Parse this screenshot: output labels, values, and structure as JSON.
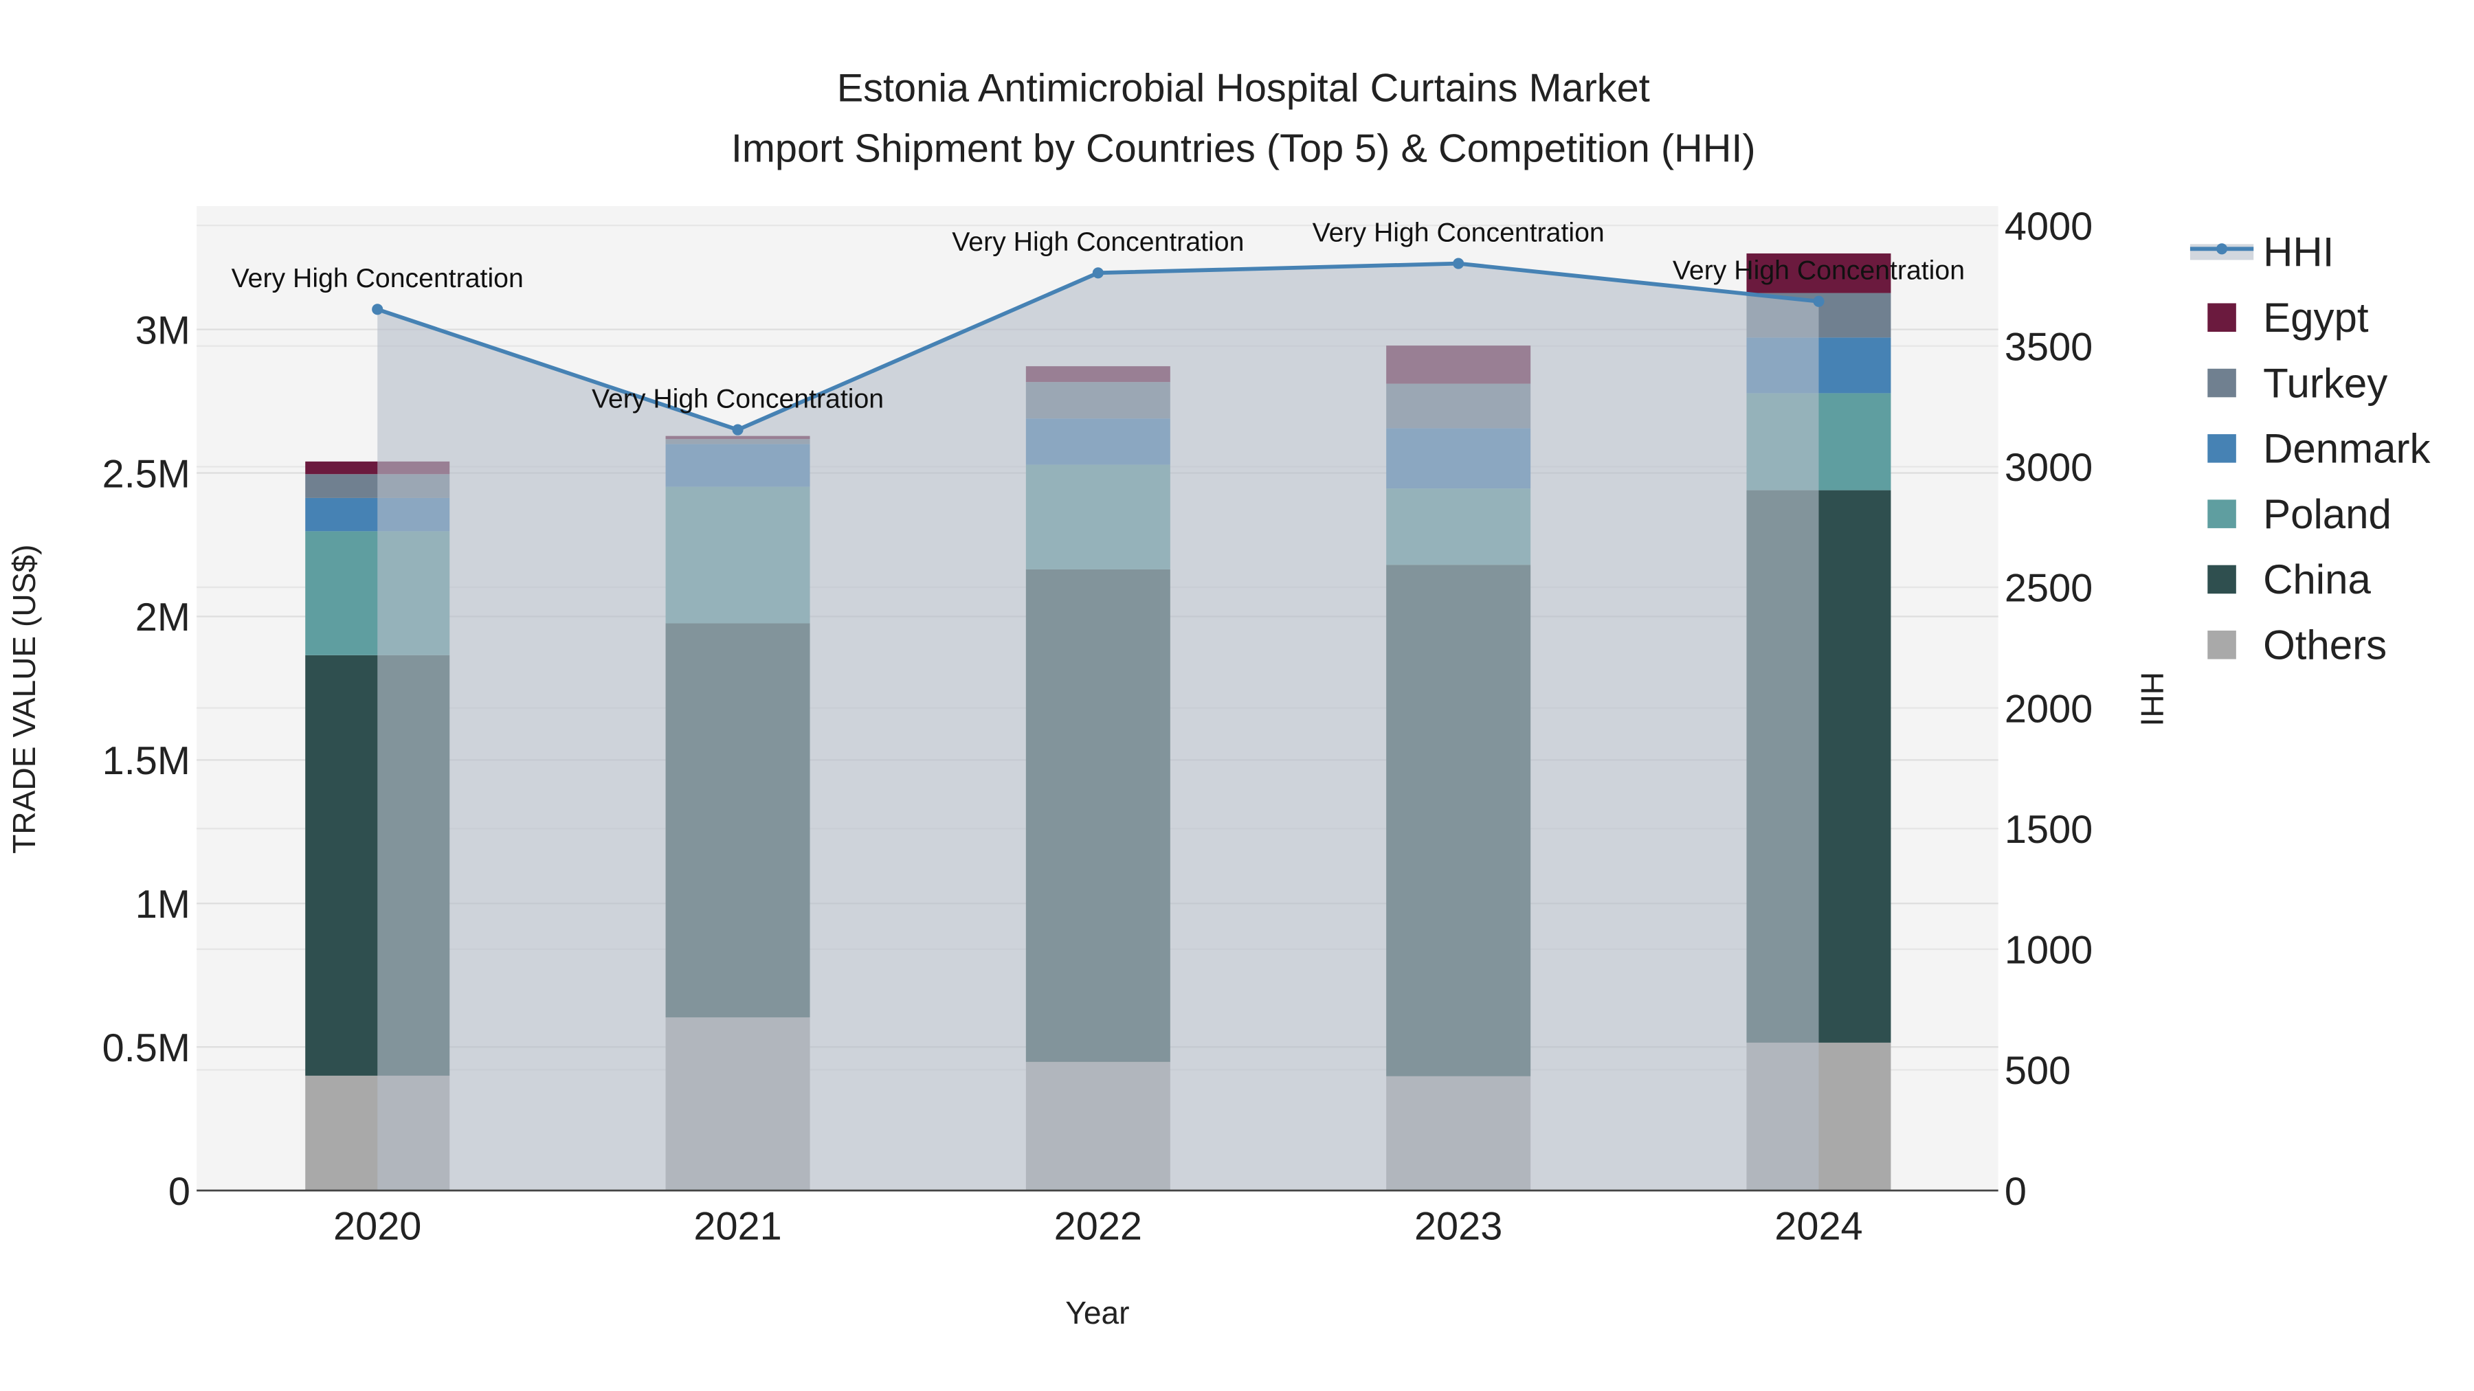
{
  "chart_data": {
    "type": "bar",
    "title_line1": "Estonia Antimicrobial Hospital Curtains Market",
    "title_line2": "Import Shipment by Countries (Top 5) & Competition (HHI)",
    "xlabel": "Year",
    "ylabel": "TRADE VALUE (US$)",
    "y2label": "HHI",
    "categories": [
      "2020",
      "2021",
      "2022",
      "2023",
      "2024"
    ],
    "ylim": [
      0,
      3430000
    ],
    "y2lim": [
      0,
      4080
    ],
    "yticks": [
      0,
      500000,
      1000000,
      1500000,
      2000000,
      2500000,
      3000000
    ],
    "ytick_labels": [
      "0",
      "0.5M",
      "1M",
      "1.5M",
      "2M",
      "2.5M",
      "3M"
    ],
    "y2ticks": [
      0,
      500,
      1000,
      1500,
      2000,
      2500,
      3000,
      3500,
      4000
    ],
    "y2tick_labels": [
      "0",
      "500",
      "1000",
      "1500",
      "2000",
      "2500",
      "3000",
      "3500",
      "4000"
    ],
    "series": [
      {
        "name": "Others",
        "color": "#a9a9a9",
        "values": [
          400000,
          603000,
          448000,
          398000,
          515000
        ]
      },
      {
        "name": "China",
        "color": "#2f4f4f",
        "values": [
          1465000,
          1373000,
          1716000,
          1782000,
          1925000
        ]
      },
      {
        "name": "Poland",
        "color": "#5f9ea0",
        "values": [
          432000,
          476000,
          365000,
          266000,
          338000
        ]
      },
      {
        "name": "Denmark",
        "color": "#4682b4",
        "values": [
          116000,
          149000,
          161000,
          210000,
          194000
        ]
      },
      {
        "name": "Turkey",
        "color": "#708090",
        "values": [
          83000,
          17000,
          127000,
          155000,
          155000
        ]
      },
      {
        "name": "Egypt",
        "color": "#6b1a3e",
        "values": [
          44000,
          11000,
          55000,
          133000,
          138000
        ]
      }
    ],
    "hhi": {
      "name": "HHI",
      "color": "#4682b4",
      "values": [
        3652,
        3153,
        3803,
        3842,
        3685
      ]
    },
    "annotations": [
      "Very High Concentration",
      "Very High Concentration",
      "Very High Concentration",
      "Very High Concentration",
      "Very High Concentration"
    ],
    "legend": [
      "HHI",
      "Egypt",
      "Turkey",
      "Denmark",
      "Poland",
      "China",
      "Others"
    ],
    "legend_position": "right",
    "grid": true
  }
}
